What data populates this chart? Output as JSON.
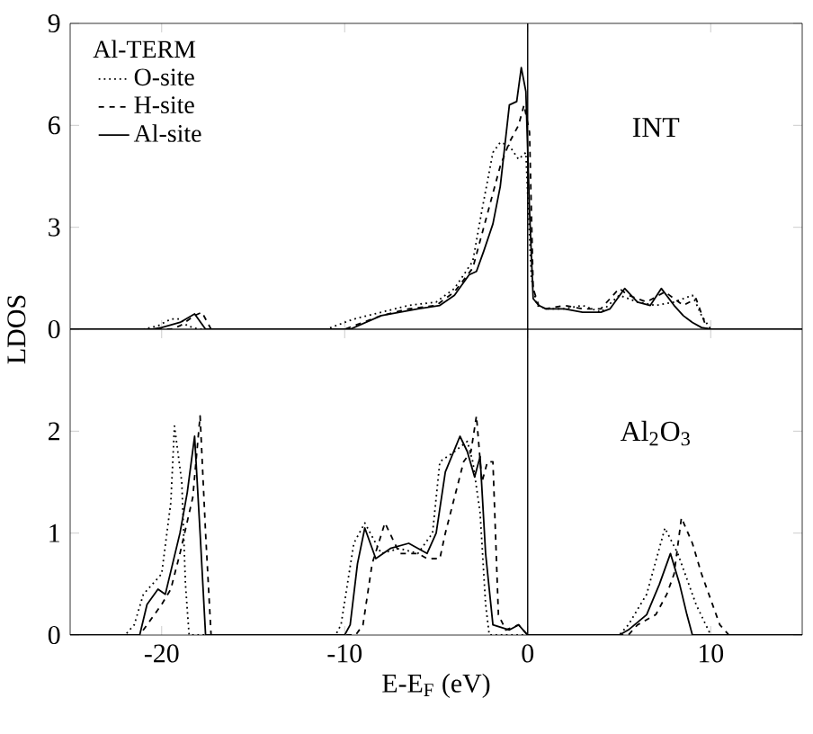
{
  "chart_data": [
    {
      "type": "line",
      "ylabel": "LDOS",
      "legend_title": "Al-TERM",
      "legend": "top left",
      "tick_labels": "y",
      "marker": "none",
      "xlim": [
        -25,
        15
      ],
      "xticks": [
        -20,
        -10,
        0,
        10
      ],
      "ylim": [
        0,
        9
      ],
      "yticks": [
        0,
        3,
        6,
        9
      ],
      "annotations": [
        "INT"
      ],
      "ref_lines": [
        {
          "axis": "x",
          "value": 0
        }
      ],
      "series": [
        {
          "name": "O-site",
          "color": "#000000",
          "line_style": "dotted",
          "x": [
            -25,
            -21,
            -20.2,
            -19.5,
            -19,
            -18.6,
            -18,
            -11,
            -10.5,
            -9.5,
            -8,
            -6.5,
            -5,
            -4,
            -3,
            -2.5,
            -1.9,
            -1.5,
            -1,
            -0.5,
            -0.1,
            0.2,
            0.5,
            1,
            2,
            3,
            4,
            5,
            6,
            7,
            8,
            9,
            9.5,
            10,
            15
          ],
          "values": [
            0,
            0,
            0.1,
            0.3,
            0.3,
            0.1,
            0,
            0,
            0.1,
            0.3,
            0.5,
            0.7,
            0.8,
            1.2,
            2,
            3.5,
            5.2,
            5.5,
            5.4,
            5,
            5.2,
            1.5,
            0.7,
            0.6,
            0.6,
            0.7,
            0.5,
            1.0,
            0.8,
            0.7,
            0.8,
            1.0,
            0.4,
            0,
            0
          ]
        },
        {
          "name": "H-site",
          "color": "#000000",
          "line_style": "dashed",
          "x": [
            -25,
            -19.5,
            -19,
            -18.2,
            -17.8,
            -17.3,
            -10,
            -9.5,
            -8,
            -6.5,
            -5,
            -4,
            -3,
            -2.5,
            -2,
            -1.5,
            -1,
            -0.5,
            -0.2,
            0.1,
            0.3,
            0.6,
            1,
            2,
            3,
            4,
            5,
            5.5,
            6.5,
            7.5,
            8.5,
            9.2,
            9.8,
            15
          ],
          "values": [
            0,
            0,
            0.1,
            0.4,
            0.5,
            0,
            0,
            0.1,
            0.4,
            0.6,
            0.7,
            1.1,
            1.8,
            2.8,
            3.8,
            4.8,
            5.5,
            6.0,
            6.6,
            5.8,
            1.2,
            0.7,
            0.6,
            0.7,
            0.6,
            0.6,
            1.2,
            1.0,
            0.8,
            1.1,
            0.7,
            0.9,
            0,
            0
          ]
        },
        {
          "name": "Al-site",
          "color": "#000000",
          "line_style": "solid",
          "x": [
            -25,
            -20.5,
            -20,
            -19,
            -18.2,
            -17.6,
            -10,
            -9.7,
            -8,
            -6,
            -4.8,
            -4,
            -3.2,
            -2.8,
            -2.4,
            -1.9,
            -1.5,
            -1,
            -0.6,
            -0.35,
            -0.1,
            0.1,
            0.3,
            0.6,
            1,
            2,
            3,
            4,
            4.5,
            5.3,
            6,
            6.7,
            7.3,
            8,
            8.5,
            9,
            9.5,
            10,
            15
          ],
          "values": [
            0,
            0,
            0.05,
            0.2,
            0.45,
            0,
            0,
            0,
            0.4,
            0.6,
            0.7,
            1.0,
            1.6,
            1.7,
            2.3,
            3.1,
            4.2,
            6.6,
            6.7,
            7.7,
            7.0,
            3.5,
            0.9,
            0.7,
            0.6,
            0.6,
            0.5,
            0.5,
            0.6,
            1.2,
            0.8,
            0.7,
            1.2,
            0.7,
            0.4,
            0.2,
            0.05,
            0,
            0
          ]
        }
      ]
    },
    {
      "type": "line",
      "xlabel": "E-E$_{F}$ (eV)",
      "marker": "none",
      "xlim": [
        -25,
        15
      ],
      "xticks": [
        -20,
        -10,
        0,
        10
      ],
      "ylim": [
        0,
        3
      ],
      "yticks": [
        0,
        1,
        2
      ],
      "annotations": [
        "Al$_{2}$O$_{3}$"
      ],
      "ref_lines": [
        {
          "axis": "x",
          "value": 0
        }
      ],
      "series": [
        {
          "color": "#000000",
          "line_style": "dotted",
          "x": [
            -25,
            -22,
            -21.5,
            -21,
            -20.5,
            -20,
            -19.5,
            -19.3,
            -18.9,
            -18.7,
            -18.5,
            -10.5,
            -10.2,
            -9.5,
            -8.9,
            -8,
            -7,
            -6,
            -5.2,
            -4.8,
            -4,
            -3.3,
            -3,
            -2.6,
            -2.3,
            -2.1,
            5,
            5.5,
            6.5,
            7.5,
            8.2,
            9.2,
            10,
            15
          ],
          "values": [
            0,
            0,
            0.1,
            0.4,
            0.5,
            0.6,
            1.3,
            2.05,
            1.5,
            0.5,
            0,
            0,
            0.1,
            0.9,
            1.1,
            0.8,
            0.85,
            0.8,
            1.0,
            1.7,
            1.8,
            1.9,
            1.7,
            1.2,
            0.3,
            0,
            0,
            0.1,
            0.4,
            1.05,
            0.8,
            0.3,
            0,
            0
          ]
        },
        {
          "color": "#000000",
          "line_style": "dashed",
          "x": [
            -25,
            -21.2,
            -20.8,
            -20,
            -19.5,
            -19,
            -18.3,
            -17.9,
            -17.6,
            -17.3,
            -9.4,
            -9,
            -8.5,
            -7.8,
            -7,
            -6,
            -5.5,
            -4.8,
            -4.5,
            -3.5,
            -3.1,
            -2.8,
            -2.5,
            -2.2,
            -1.9,
            -1.6,
            -1.2,
            -0.5,
            0,
            5.5,
            6,
            7,
            7.6,
            8,
            8.4,
            9,
            9.5,
            10.5,
            11,
            15
          ],
          "values": [
            0,
            0,
            0.1,
            0.3,
            0.45,
            0.8,
            1.35,
            2.15,
            1.0,
            0,
            0,
            0.1,
            0.7,
            1.1,
            0.8,
            0.8,
            0.75,
            0.75,
            1.0,
            1.7,
            1.8,
            2.15,
            1.5,
            1.7,
            1.7,
            0.2,
            0.05,
            0.1,
            0,
            0,
            0.1,
            0.2,
            0.4,
            0.6,
            1.15,
            0.9,
            0.6,
            0.1,
            0,
            0
          ]
        },
        {
          "color": "#000000",
          "line_style": "solid",
          "x": [
            -25,
            -21.2,
            -20.8,
            -20.2,
            -19.8,
            -19.4,
            -19,
            -18.6,
            -18.2,
            -17.9,
            -17.6,
            -10,
            -9.7,
            -9.3,
            -8.9,
            -8.3,
            -7.5,
            -6.5,
            -5.5,
            -5,
            -4.5,
            -3.7,
            -3.3,
            -2.9,
            -2.6,
            -2.3,
            -1.9,
            -1,
            -0.5,
            0,
            5,
            5.5,
            6.5,
            7.2,
            7.8,
            8.3,
            8.7,
            9,
            15
          ],
          "values": [
            0,
            0,
            0.3,
            0.45,
            0.4,
            0.7,
            1.0,
            1.4,
            1.95,
            1.0,
            0,
            0,
            0.1,
            0.7,
            1.05,
            0.75,
            0.85,
            0.9,
            0.8,
            1.0,
            1.6,
            1.95,
            1.8,
            1.55,
            1.75,
            0.8,
            0.1,
            0.05,
            0.1,
            0,
            0,
            0.05,
            0.2,
            0.5,
            0.8,
            0.5,
            0.2,
            0,
            0
          ]
        }
      ]
    }
  ]
}
